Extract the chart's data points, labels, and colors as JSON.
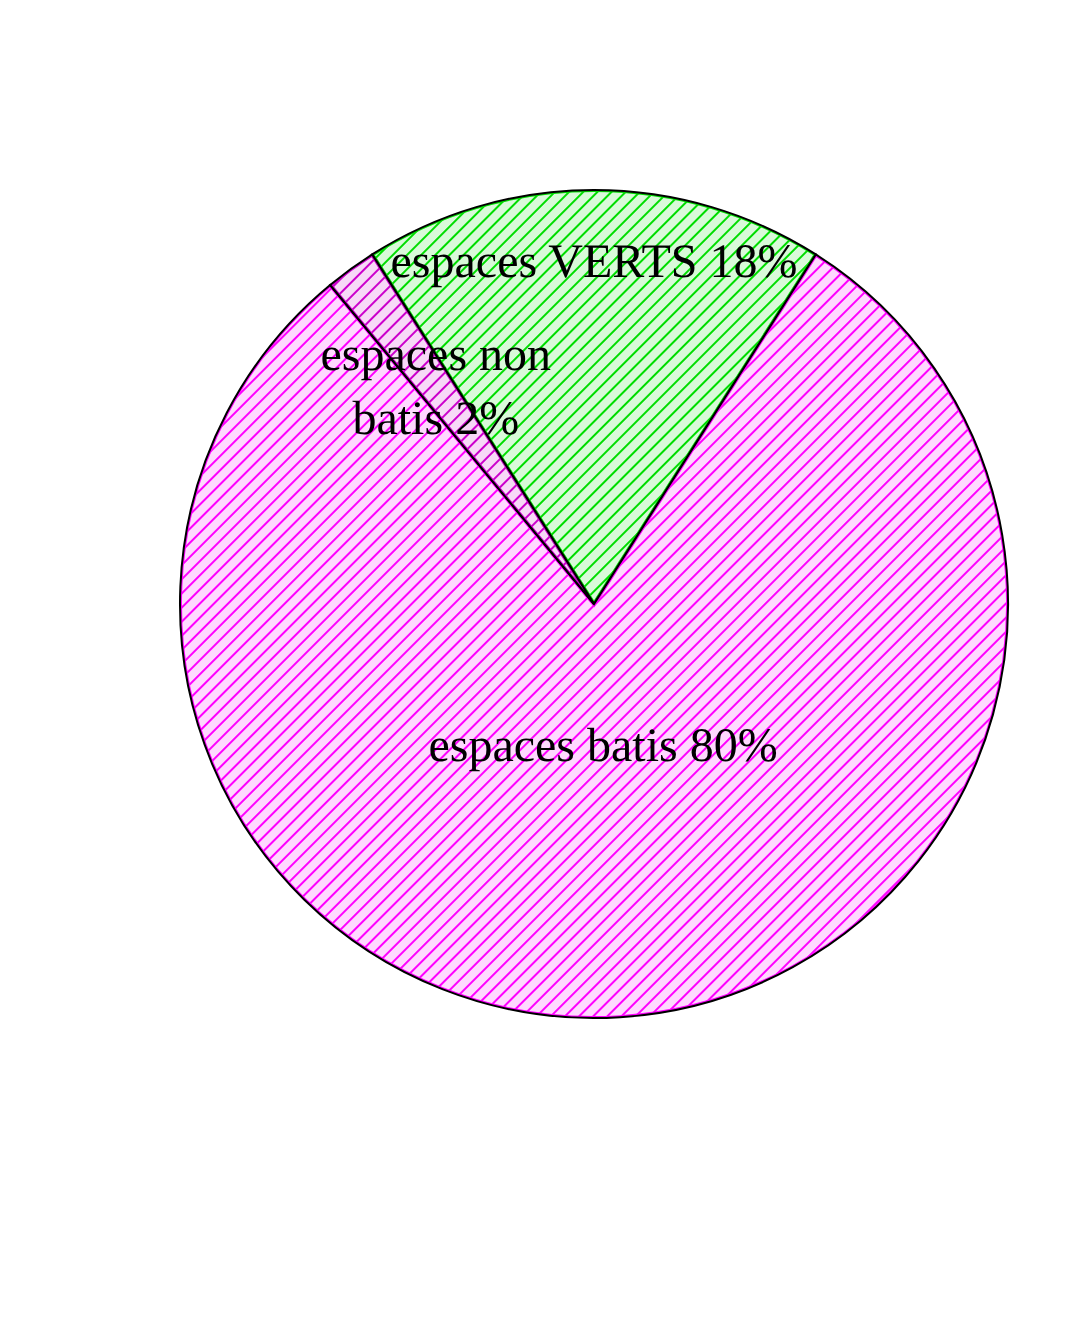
{
  "chart_data": {
    "type": "pie",
    "categories": [
      "espaces VERTS",
      "espaces batis",
      "espaces non batis"
    ],
    "values": [
      18,
      80,
      2
    ],
    "value_labels": [
      "18%",
      "80%",
      "2%"
    ],
    "colors": [
      "#00dd00",
      "#ff00ff",
      "#cc00cc"
    ]
  }
}
